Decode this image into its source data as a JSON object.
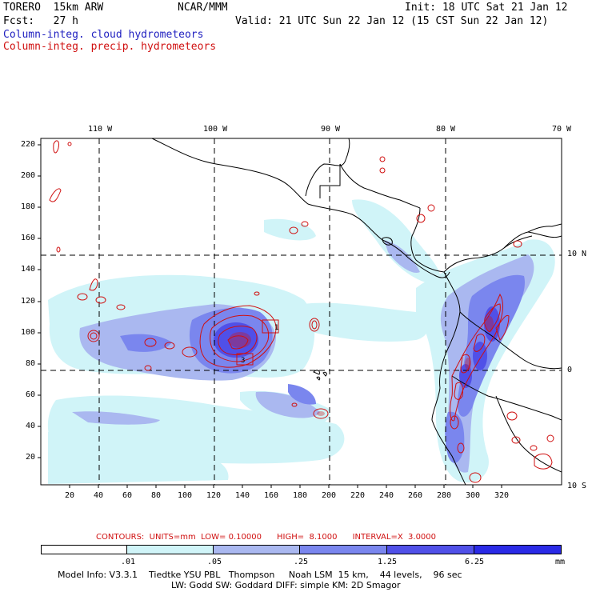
{
  "header": {
    "model": "TORERO  15km ARW",
    "org": "NCAR/MMM",
    "init": "Init: 18 UTC Sat 21 Jan 12",
    "fcst": "Fcst:   27 h",
    "valid": "Valid: 21 UTC Sun 22 Jan 12 (15 CST Sun 22 Jan 12)",
    "legend_cloud": "Column-integ. cloud hydrometeors",
    "legend_precip": "Column-integ. precip. hydrometeors"
  },
  "map": {
    "lon_labels": [
      "110 W",
      "100 W",
      "90 W",
      "80 W",
      "70 W"
    ],
    "lat_labels": [
      "10 N",
      "0",
      "10 S"
    ],
    "x_ticks": [
      "20",
      "40",
      "60",
      "80",
      "100",
      "120",
      "140",
      "160",
      "180",
      "200",
      "220",
      "240",
      "260",
      "280",
      "300",
      "320"
    ],
    "y_ticks": [
      "220",
      "200",
      "180",
      "160",
      "140",
      "120",
      "100",
      "80",
      "60",
      "40",
      "20"
    ],
    "max_label": "1",
    "min_label": "3"
  },
  "colorbar": {
    "contours_text": "CONTOURS:  UNITS=mm  LOW= 0.10000      HIGH=  8.1000      INTERVAL=X  3.0000",
    "thresholds": [
      ".01",
      ".05",
      ".25",
      "1.25",
      "6.25"
    ],
    "units": "mm",
    "colors": [
      "#ffffff",
      "#d0f4f8",
      "#aab8f0",
      "#7a86ee",
      "#5050e8",
      "#2a2ae6"
    ]
  },
  "footer": {
    "line1": "Model Info: V3.3.1    Tiedtke YSU PBL   Thompson     Noah LSM  15 km,    44 levels,    96 sec",
    "line2": "LW: Godd SW: Goddard DIFF: simple KM: 2D Smagor"
  },
  "colors": {
    "cloud_light": "#d0f4f8",
    "cloud_mid": "#aab8f0",
    "cloud_dark": "#7a86ee",
    "cloud_deep": "#5050e8",
    "precip": "#d01010"
  }
}
